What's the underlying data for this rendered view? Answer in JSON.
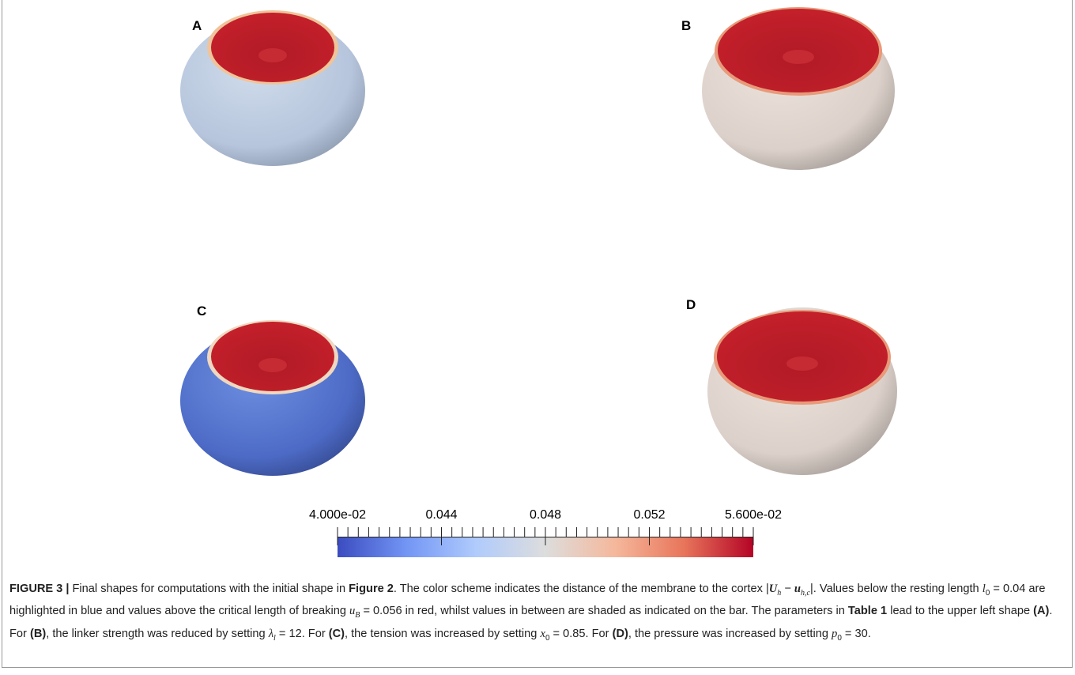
{
  "panels": [
    "A",
    "B",
    "C",
    "D"
  ],
  "colorbar": {
    "range": [
      0.04,
      0.056
    ],
    "minor_tick_step": 0.0004,
    "ticks": [
      {
        "value": 0.04,
        "label": "4.000e-02"
      },
      0.044,
      0.048,
      0.052,
      {
        "value": 0.056,
        "label": "5.600e-02"
      }
    ],
    "colors": [
      "#3b4cc0",
      "#7396f5",
      "#b0cbfc",
      "#dddddd",
      "#f5b89c",
      "#e8755b",
      "#b40426"
    ]
  },
  "caption": [
    "FIGURE 3 |",
    " Final shapes for computations with the initial shape in ",
    "Figure 2",
    ". The color scheme indicates the distance of the membrane to the cortex |",
    "U",
    "h",
    " − ",
    "u",
    "h,c",
    "|.",
    " Values below the resting length ",
    "l",
    "0",
    " = 0.04 are highlighted in blue and values above the critical length of breaking ",
    "u",
    "B",
    " = 0.056 in red, whilst values in between are shaded as indicated on the bar. The parameters in ",
    "Table 1",
    " lead to the upper left shape ",
    "(A)",
    ". For ",
    "(B)",
    ", the linker strength was reduced by setting ",
    "λ",
    "l",
    " = 12. For ",
    "(C)",
    ", the tension was increased by setting ",
    "x",
    "0",
    " = 0.85. For ",
    "(D)",
    ", the pressure was increased by setting ",
    "p",
    "0",
    " = 30."
  ]
}
